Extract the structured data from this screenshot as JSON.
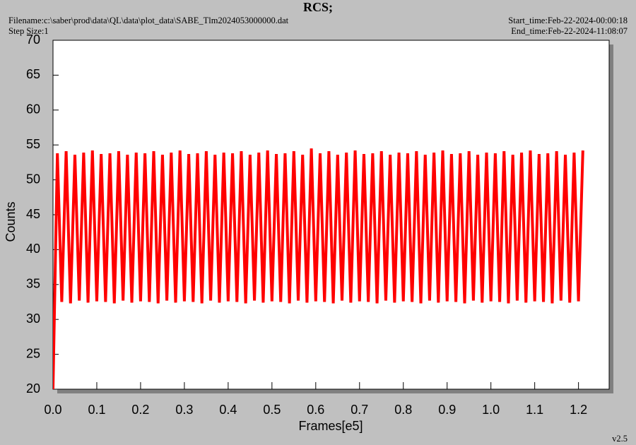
{
  "chart_data": {
    "type": "line",
    "title": "RCS;",
    "filename": "Filename:c:\\saber\\prod\\data\\QL\\data\\plot_data\\SABE_Tlm2024053000000.dat",
    "step_size": "Step Size:1",
    "start_time": "Start_time:Feb-22-2024-00:00:18",
    "end_time": "End_time:Feb-22-2024-11:08:07",
    "version": "v2.5",
    "x_label": "Frames[e5]",
    "y_label": "Counts",
    "color": "#ff0000",
    "xlim": [
      0,
      1.27
    ],
    "ylim": [
      20,
      70
    ],
    "xticks": [
      {
        "value": 0,
        "label": "0.0"
      },
      0.1,
      0.2,
      0.3,
      0.4,
      0.5,
      0.6,
      0.7,
      0.8,
      0.9,
      {
        "value": 1,
        "label": "1.0"
      },
      1.1,
      1.2
    ],
    "yticks": [
      20,
      25,
      30,
      35,
      40,
      45,
      50,
      55,
      60,
      65,
      70
    ],
    "x": [
      0,
      0.01,
      0.02,
      0.03,
      0.04,
      0.05,
      0.06,
      0.07,
      0.08,
      0.09,
      0.1,
      0.11,
      0.12,
      0.13,
      0.14,
      0.15,
      0.16,
      0.17,
      0.18,
      0.19,
      0.2,
      0.21,
      0.22,
      0.23,
      0.24,
      0.25,
      0.26,
      0.27,
      0.28,
      0.29,
      0.3,
      0.31,
      0.32,
      0.33,
      0.34,
      0.35,
      0.36,
      0.37,
      0.38,
      0.39,
      0.4,
      0.41,
      0.42,
      0.43,
      0.44,
      0.45,
      0.46,
      0.47,
      0.48,
      0.49,
      0.5,
      0.51,
      0.52,
      0.53,
      0.54,
      0.55,
      0.56,
      0.57,
      0.58,
      0.59,
      0.6,
      0.61,
      0.62,
      0.63,
      0.64,
      0.65,
      0.66,
      0.67,
      0.68,
      0.69,
      0.7,
      0.71,
      0.72,
      0.73,
      0.74,
      0.75,
      0.76,
      0.77,
      0.78,
      0.79,
      0.8,
      0.81,
      0.82,
      0.83,
      0.84,
      0.85,
      0.86,
      0.87,
      0.88,
      0.89,
      0.9,
      0.91,
      0.92,
      0.93,
      0.94,
      0.95,
      0.96,
      0.97,
      0.98,
      0.99,
      1,
      1.01,
      1.02,
      1.03,
      1.04,
      1.05,
      1.06,
      1.07,
      1.08,
      1.09,
      1.1,
      1.11,
      1.12,
      1.13,
      1.14,
      1.15,
      1.16,
      1.17,
      1.18,
      1.19,
      1.2,
      1.21
    ],
    "values": [
      20,
      53.8,
      32.5,
      54.1,
      32.3,
      53.6,
      32.7,
      53.9,
      32.4,
      54.2,
      32.6,
      53.7,
      32.5,
      53.8,
      32.3,
      54.1,
      32.7,
      53.6,
      32.4,
      53.9,
      32.6,
      53.8,
      32.5,
      54.1,
      32.3,
      53.6,
      32.7,
      53.9,
      32.4,
      54.2,
      32.6,
      53.7,
      32.5,
      53.8,
      32.3,
      54.1,
      32.7,
      53.6,
      32.4,
      53.9,
      32.6,
      53.8,
      32.5,
      54.1,
      32.3,
      53.6,
      32.7,
      53.9,
      32.4,
      54.2,
      32.6,
      53.7,
      32.5,
      53.8,
      32.3,
      54.1,
      32.7,
      53.6,
      32.4,
      54.5,
      32.6,
      53.8,
      32.5,
      54.1,
      32.3,
      53.6,
      32.7,
      53.9,
      32.4,
      54.2,
      32.6,
      53.7,
      32.5,
      53.8,
      32.3,
      54.1,
      32.7,
      53.6,
      32.4,
      53.9,
      32.6,
      53.8,
      32.5,
      54.1,
      32.3,
      53.6,
      32.7,
      53.9,
      32.4,
      54.2,
      32.6,
      53.7,
      32.5,
      53.8,
      32.3,
      54.1,
      32.7,
      53.6,
      32.4,
      53.9,
      32.6,
      53.8,
      32.5,
      54.1,
      32.3,
      53.6,
      32.7,
      53.9,
      32.4,
      54.2,
      32.6,
      53.7,
      32.5,
      53.8,
      32.3,
      54.1,
      32.7,
      53.6,
      32.4,
      53.9,
      32.6,
      54.2
    ]
  }
}
